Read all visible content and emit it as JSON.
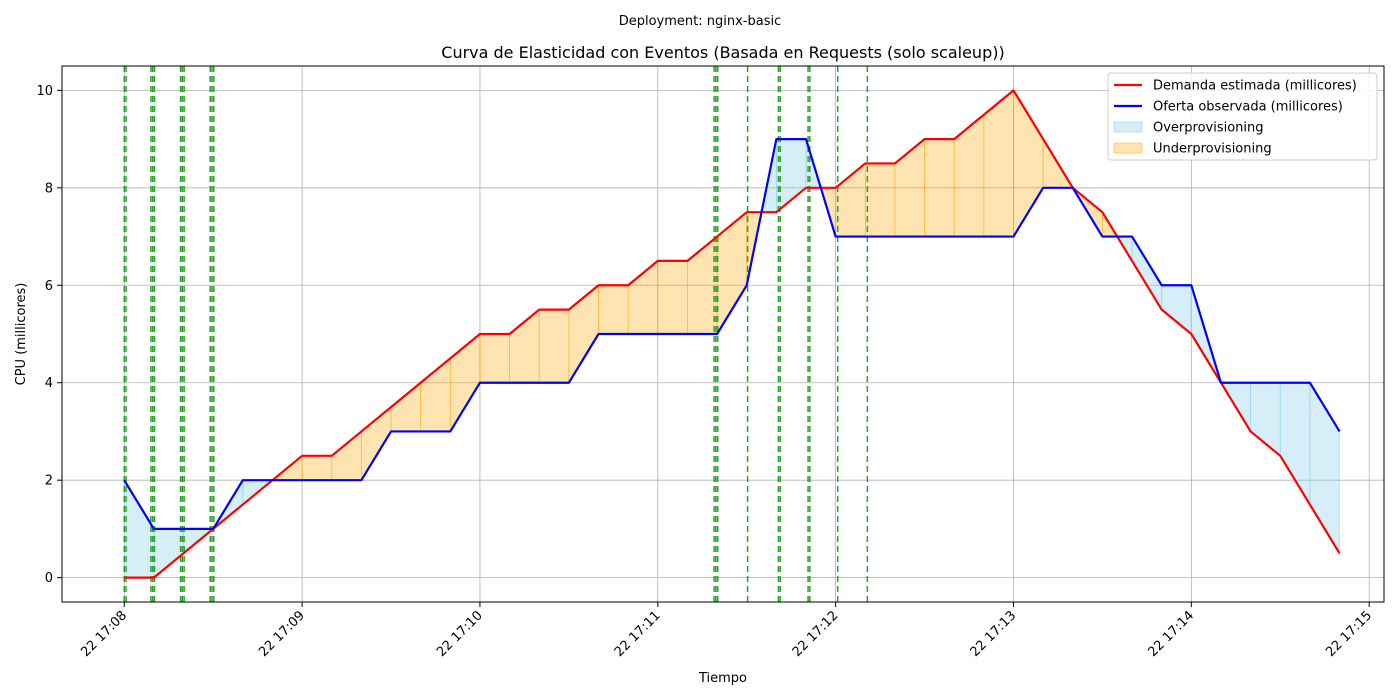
{
  "suptitle": "Deployment: nginx-basic",
  "chart_data": {
    "type": "line",
    "title": "Curva de Elasticidad con Eventos (Basada en Requests (solo scaleup))",
    "xlabel": "Tiempo",
    "ylabel": "CPU (millicores)",
    "xlim": [
      "2022-01-22T17:07:39",
      "2022-01-22T17:15:05"
    ],
    "ylim": [
      -0.5,
      10.5
    ],
    "x_ticks": [
      "22 17:08",
      "22 17:09",
      "22 17:10",
      "22 17:11",
      "22 17:12",
      "22 17:13",
      "22 17:14",
      "22 17:15"
    ],
    "y_ticks": [
      0,
      2,
      4,
      6,
      8,
      10
    ],
    "grid": true,
    "legend_position": "top-right",
    "x": [
      "17:08:00",
      "17:08:10",
      "17:08:20",
      "17:08:30",
      "17:08:40",
      "17:08:50",
      "17:09:00",
      "17:09:10",
      "17:09:20",
      "17:09:30",
      "17:09:40",
      "17:09:50",
      "17:10:00",
      "17:10:10",
      "17:10:20",
      "17:10:30",
      "17:10:40",
      "17:10:50",
      "17:11:00",
      "17:11:10",
      "17:11:20",
      "17:11:30",
      "17:11:40",
      "17:11:50",
      "17:12:00",
      "17:12:10",
      "17:12:20",
      "17:12:30",
      "17:12:40",
      "17:12:50",
      "17:13:00",
      "17:13:10",
      "17:13:20",
      "17:13:30",
      "17:13:40",
      "17:13:50",
      "17:14:00",
      "17:14:10",
      "17:14:20",
      "17:14:30",
      "17:14:40",
      "17:14:50"
    ],
    "series": [
      {
        "name": "Demanda estimada (millicores)",
        "color": "#ff0000",
        "values": [
          0,
          0,
          0.5,
          1,
          1.5,
          2,
          2.5,
          2.5,
          3,
          3.5,
          4,
          4.5,
          5,
          5,
          5.5,
          5.5,
          6,
          6,
          6.5,
          6.5,
          7,
          7.5,
          7.5,
          8,
          8,
          8.5,
          8.5,
          9,
          9,
          9.5,
          10,
          9,
          8,
          7.5,
          6.5,
          5.5,
          5,
          4,
          3,
          2.5,
          1.5,
          0.5
        ]
      },
      {
        "name": "Oferta observada (millicores)",
        "color": "#0000ff",
        "values": [
          2,
          1,
          1,
          1,
          2,
          2,
          2,
          2,
          2,
          3,
          3,
          3,
          4,
          4,
          4,
          4,
          5,
          5,
          5,
          5,
          5,
          6,
          9,
          9,
          7,
          7,
          7,
          7,
          7,
          7,
          7,
          8,
          8,
          7,
          7,
          6,
          6,
          4,
          4,
          4,
          4,
          3
        ]
      }
    ],
    "fills": [
      {
        "name": "Overprovisioning",
        "color": "#87ceeb",
        "opacity": 0.35
      },
      {
        "name": "Underprovisioning",
        "color": "#ffa500",
        "opacity": 0.3
      }
    ],
    "event_lines": {
      "color": "#2ca02c",
      "times": [
        "17:08:00",
        "17:08:00.6",
        "17:08:09",
        "17:08:09.6",
        "17:08:10.2",
        "17:08:19",
        "17:08:19.6",
        "17:08:20.2",
        "17:08:29",
        "17:08:29.6",
        "17:08:30.2",
        "17:11:19",
        "17:11:19.6",
        "17:11:20.2",
        "17:11:30.3",
        "17:11:40.7",
        "17:11:41.3",
        "17:11:50.7",
        "17:11:51.3",
        "17:12:00.7",
        "17:12:10.7"
      ]
    }
  }
}
